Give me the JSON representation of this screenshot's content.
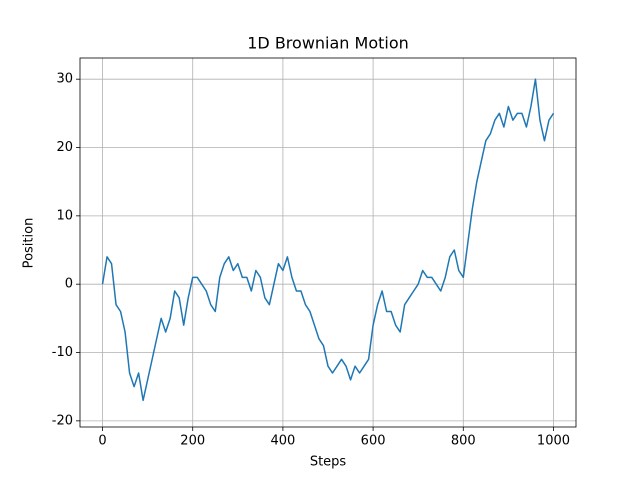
{
  "chart_data": {
    "type": "line",
    "title": "1D Brownian Motion",
    "x_label": "Steps",
    "y_label": "Position",
    "x": [
      0,
      10,
      20,
      30,
      40,
      50,
      60,
      70,
      80,
      90,
      100,
      110,
      120,
      130,
      140,
      150,
      160,
      170,
      180,
      190,
      200,
      210,
      220,
      230,
      240,
      250,
      260,
      270,
      280,
      290,
      300,
      310,
      320,
      330,
      340,
      350,
      360,
      370,
      380,
      390,
      400,
      410,
      420,
      430,
      440,
      450,
      460,
      470,
      480,
      490,
      500,
      510,
      520,
      530,
      540,
      550,
      560,
      570,
      580,
      590,
      600,
      610,
      620,
      630,
      640,
      650,
      660,
      670,
      680,
      690,
      700,
      710,
      720,
      730,
      740,
      750,
      760,
      770,
      780,
      790,
      800,
      810,
      820,
      830,
      840,
      850,
      860,
      870,
      880,
      890,
      900,
      910,
      920,
      930,
      940,
      950,
      960,
      970,
      980,
      990,
      1000
    ],
    "series": [
      {
        "name": "Position",
        "color": "#1f77b4",
        "values": [
          0,
          4,
          3,
          -3,
          -4,
          -7,
          -13,
          -15,
          -13,
          -17,
          -14,
          -11,
          -8,
          -5,
          -7,
          -5,
          -1,
          -2,
          -6,
          -2,
          1,
          1,
          0,
          -1,
          -3,
          -4,
          1,
          3,
          4,
          2,
          3,
          1,
          1,
          -1,
          2,
          1,
          -2,
          -3,
          0,
          3,
          2,
          4,
          1,
          -1,
          -1,
          -3,
          -4,
          -6,
          -8,
          -9,
          -12,
          -13,
          -12,
          -11,
          -12,
          -14,
          -12,
          -13,
          -12,
          -11,
          -6,
          -3,
          -1,
          -4,
          -4,
          -6,
          -7,
          -3,
          -2,
          -1,
          0,
          2,
          1,
          1,
          0,
          -1,
          1,
          4,
          5,
          2,
          1,
          6,
          11,
          15,
          18,
          21,
          22,
          24,
          25,
          23,
          26,
          24,
          25,
          25,
          23,
          26,
          30,
          24,
          21,
          24,
          25
        ]
      }
    ],
    "xlim": [
      -49.95,
      1049.95
    ],
    "ylim": [
      -20.9,
      33.1
    ],
    "xticks": [
      0,
      200,
      400,
      600,
      800,
      1000
    ],
    "yticks": [
      -20,
      -10,
      0,
      10,
      20,
      30
    ],
    "grid": true
  }
}
